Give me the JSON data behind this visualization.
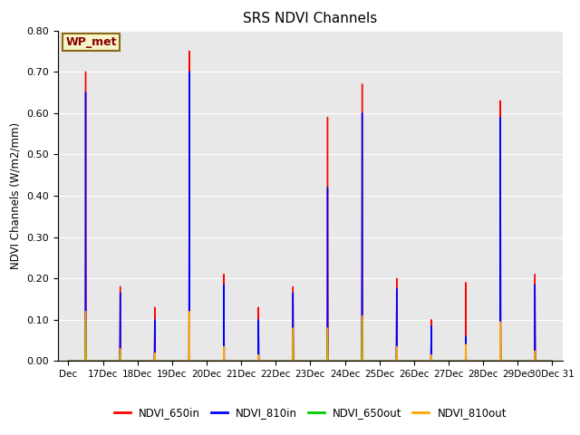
{
  "title": "SRS NDVI Channels",
  "ylabel": "NDVI Channels (W/m2/mm)",
  "ylim": [
    0.0,
    0.8
  ],
  "background_color": "#e8e8e8",
  "annotation_text": "WP_met",
  "annotation_bg": "#f5f5c8",
  "annotation_border": "#8b6914",
  "annotation_text_color": "#8b0000",
  "legend_entries": [
    "NDVI_650in",
    "NDVI_810in",
    "NDVI_650out",
    "NDVI_810out"
  ],
  "legend_colors": [
    "#ff0000",
    "#0000ff",
    "#00cc00",
    "#ffa500"
  ],
  "yticks": [
    0.0,
    0.1,
    0.2,
    0.3,
    0.4,
    0.5,
    0.6,
    0.7,
    0.8
  ],
  "xtick_positions": [
    0,
    1,
    2,
    3,
    4,
    5,
    6,
    7,
    8,
    9,
    10,
    11,
    12,
    13,
    14
  ],
  "xtick_labels": [
    "Dec",
    "17Dec",
    "18Dec",
    "19Dec",
    "20Dec",
    "21Dec",
    "22Dec",
    "23Dec",
    "24Dec",
    "25Dec",
    "26Dec",
    "27Dec",
    "28Dec",
    "29Dec",
    "30Dec 31"
  ],
  "series": {
    "NDVI_650in": {
      "color": "#ff0000",
      "lw": 1.0,
      "x": [
        0.0,
        0.49,
        0.5,
        0.51,
        1.0,
        1.49,
        1.5,
        1.51,
        2.0,
        2.49,
        2.5,
        2.51,
        3.0,
        3.49,
        3.5,
        3.51,
        4.0,
        4.49,
        4.5,
        4.51,
        5.0,
        5.49,
        5.5,
        5.51,
        6.0,
        6.49,
        6.5,
        6.51,
        7.0,
        7.49,
        7.5,
        7.51,
        8.0,
        8.49,
        8.5,
        8.51,
        9.0,
        9.49,
        9.5,
        9.51,
        10.0,
        10.49,
        10.5,
        10.51,
        11.0,
        11.49,
        11.5,
        11.51,
        12.0,
        12.49,
        12.5,
        12.51,
        13.0,
        13.49,
        13.5,
        13.51,
        14.0
      ],
      "y": [
        0.0,
        0.0,
        0.7,
        0.0,
        0.0,
        0.0,
        0.18,
        0.0,
        0.0,
        0.0,
        0.13,
        0.0,
        0.0,
        0.0,
        0.75,
        0.0,
        0.0,
        0.0,
        0.21,
        0.0,
        0.0,
        0.0,
        0.13,
        0.0,
        0.0,
        0.0,
        0.18,
        0.0,
        0.0,
        0.0,
        0.59,
        0.0,
        0.0,
        0.0,
        0.67,
        0.0,
        0.0,
        0.0,
        0.2,
        0.0,
        0.0,
        0.0,
        0.1,
        0.0,
        0.0,
        0.0,
        0.19,
        0.0,
        0.0,
        0.0,
        0.63,
        0.0,
        0.0,
        0.0,
        0.21,
        0.0,
        0.0
      ]
    },
    "NDVI_810in": {
      "color": "#0000ff",
      "lw": 1.0,
      "x": [
        0.0,
        0.49,
        0.5,
        0.51,
        1.0,
        1.49,
        1.5,
        1.51,
        2.0,
        2.49,
        2.5,
        2.51,
        3.0,
        3.49,
        3.5,
        3.51,
        4.0,
        4.49,
        4.5,
        4.51,
        5.0,
        5.49,
        5.5,
        5.51,
        6.0,
        6.49,
        6.5,
        6.51,
        7.0,
        7.49,
        7.5,
        7.51,
        8.0,
        8.49,
        8.5,
        8.51,
        9.0,
        9.49,
        9.5,
        9.51,
        10.0,
        10.49,
        10.5,
        10.51,
        11.0,
        11.49,
        11.5,
        11.51,
        12.0,
        12.49,
        12.5,
        12.51,
        13.0,
        13.49,
        13.5,
        13.51,
        14.0
      ],
      "y": [
        0.0,
        0.0,
        0.65,
        0.0,
        0.0,
        0.0,
        0.165,
        0.0,
        0.0,
        0.0,
        0.1,
        0.0,
        0.0,
        0.0,
        0.7,
        0.0,
        0.0,
        0.0,
        0.185,
        0.0,
        0.0,
        0.0,
        0.1,
        0.0,
        0.0,
        0.0,
        0.165,
        0.0,
        0.0,
        0.0,
        0.42,
        0.0,
        0.0,
        0.0,
        0.6,
        0.0,
        0.0,
        0.0,
        0.175,
        0.0,
        0.0,
        0.0,
        0.085,
        0.0,
        0.0,
        0.0,
        0.06,
        0.0,
        0.0,
        0.0,
        0.59,
        0.0,
        0.0,
        0.0,
        0.185,
        0.0,
        0.0
      ]
    },
    "NDVI_650out": {
      "color": "#00cc00",
      "lw": 1.0,
      "x": [
        0.0,
        0.49,
        0.5,
        0.51,
        1.0,
        1.49,
        1.5,
        1.51,
        2.0,
        2.49,
        2.5,
        2.51,
        3.0,
        3.49,
        3.5,
        3.51,
        4.0,
        4.49,
        4.5,
        4.51,
        5.0,
        5.49,
        5.5,
        5.51,
        6.0,
        6.49,
        6.5,
        6.51,
        7.0,
        7.49,
        7.5,
        7.51,
        8.0,
        8.49,
        8.5,
        8.51,
        9.0,
        9.49,
        9.5,
        9.51,
        10.0,
        10.49,
        10.5,
        10.51,
        11.0,
        11.49,
        11.5,
        11.51,
        12.0,
        12.49,
        12.5,
        12.51,
        13.0,
        13.49,
        13.5,
        13.51,
        14.0
      ],
      "y": [
        0.0,
        0.0,
        0.1,
        0.0,
        0.0,
        0.0,
        0.025,
        0.0,
        0.0,
        0.0,
        0.015,
        0.0,
        0.0,
        0.0,
        0.085,
        0.0,
        0.0,
        0.0,
        0.03,
        0.0,
        0.0,
        0.0,
        0.01,
        0.0,
        0.0,
        0.0,
        0.065,
        0.0,
        0.0,
        0.0,
        0.055,
        0.0,
        0.0,
        0.0,
        0.1,
        0.0,
        0.0,
        0.0,
        0.03,
        0.0,
        0.0,
        0.0,
        0.01,
        0.0,
        0.0,
        0.0,
        0.04,
        0.0,
        0.0,
        0.0,
        0.065,
        0.0,
        0.0,
        0.0,
        0.02,
        0.0,
        0.0
      ]
    },
    "NDVI_810out": {
      "color": "#ffa500",
      "lw": 1.0,
      "x": [
        0.0,
        0.49,
        0.5,
        0.51,
        1.0,
        1.49,
        1.5,
        1.51,
        2.0,
        2.49,
        2.5,
        2.51,
        3.0,
        3.49,
        3.5,
        3.51,
        4.0,
        4.49,
        4.5,
        4.51,
        5.0,
        5.49,
        5.5,
        5.51,
        6.0,
        6.49,
        6.5,
        6.51,
        7.0,
        7.49,
        7.5,
        7.51,
        8.0,
        8.49,
        8.5,
        8.51,
        9.0,
        9.49,
        9.5,
        9.51,
        10.0,
        10.49,
        10.5,
        10.51,
        11.0,
        11.49,
        11.5,
        11.51,
        12.0,
        12.49,
        12.5,
        12.51,
        13.0,
        13.49,
        13.5,
        13.51,
        14.0
      ],
      "y": [
        0.0,
        0.0,
        0.12,
        0.0,
        0.0,
        0.0,
        0.03,
        0.0,
        0.0,
        0.0,
        0.02,
        0.0,
        0.0,
        0.0,
        0.12,
        0.0,
        0.0,
        0.0,
        0.035,
        0.0,
        0.0,
        0.0,
        0.015,
        0.0,
        0.0,
        0.0,
        0.08,
        0.0,
        0.0,
        0.0,
        0.08,
        0.0,
        0.0,
        0.0,
        0.11,
        0.0,
        0.0,
        0.0,
        0.035,
        0.0,
        0.0,
        0.0,
        0.015,
        0.0,
        0.0,
        0.0,
        0.04,
        0.0,
        0.0,
        0.0,
        0.095,
        0.0,
        0.0,
        0.0,
        0.025,
        0.0,
        0.0
      ]
    }
  }
}
